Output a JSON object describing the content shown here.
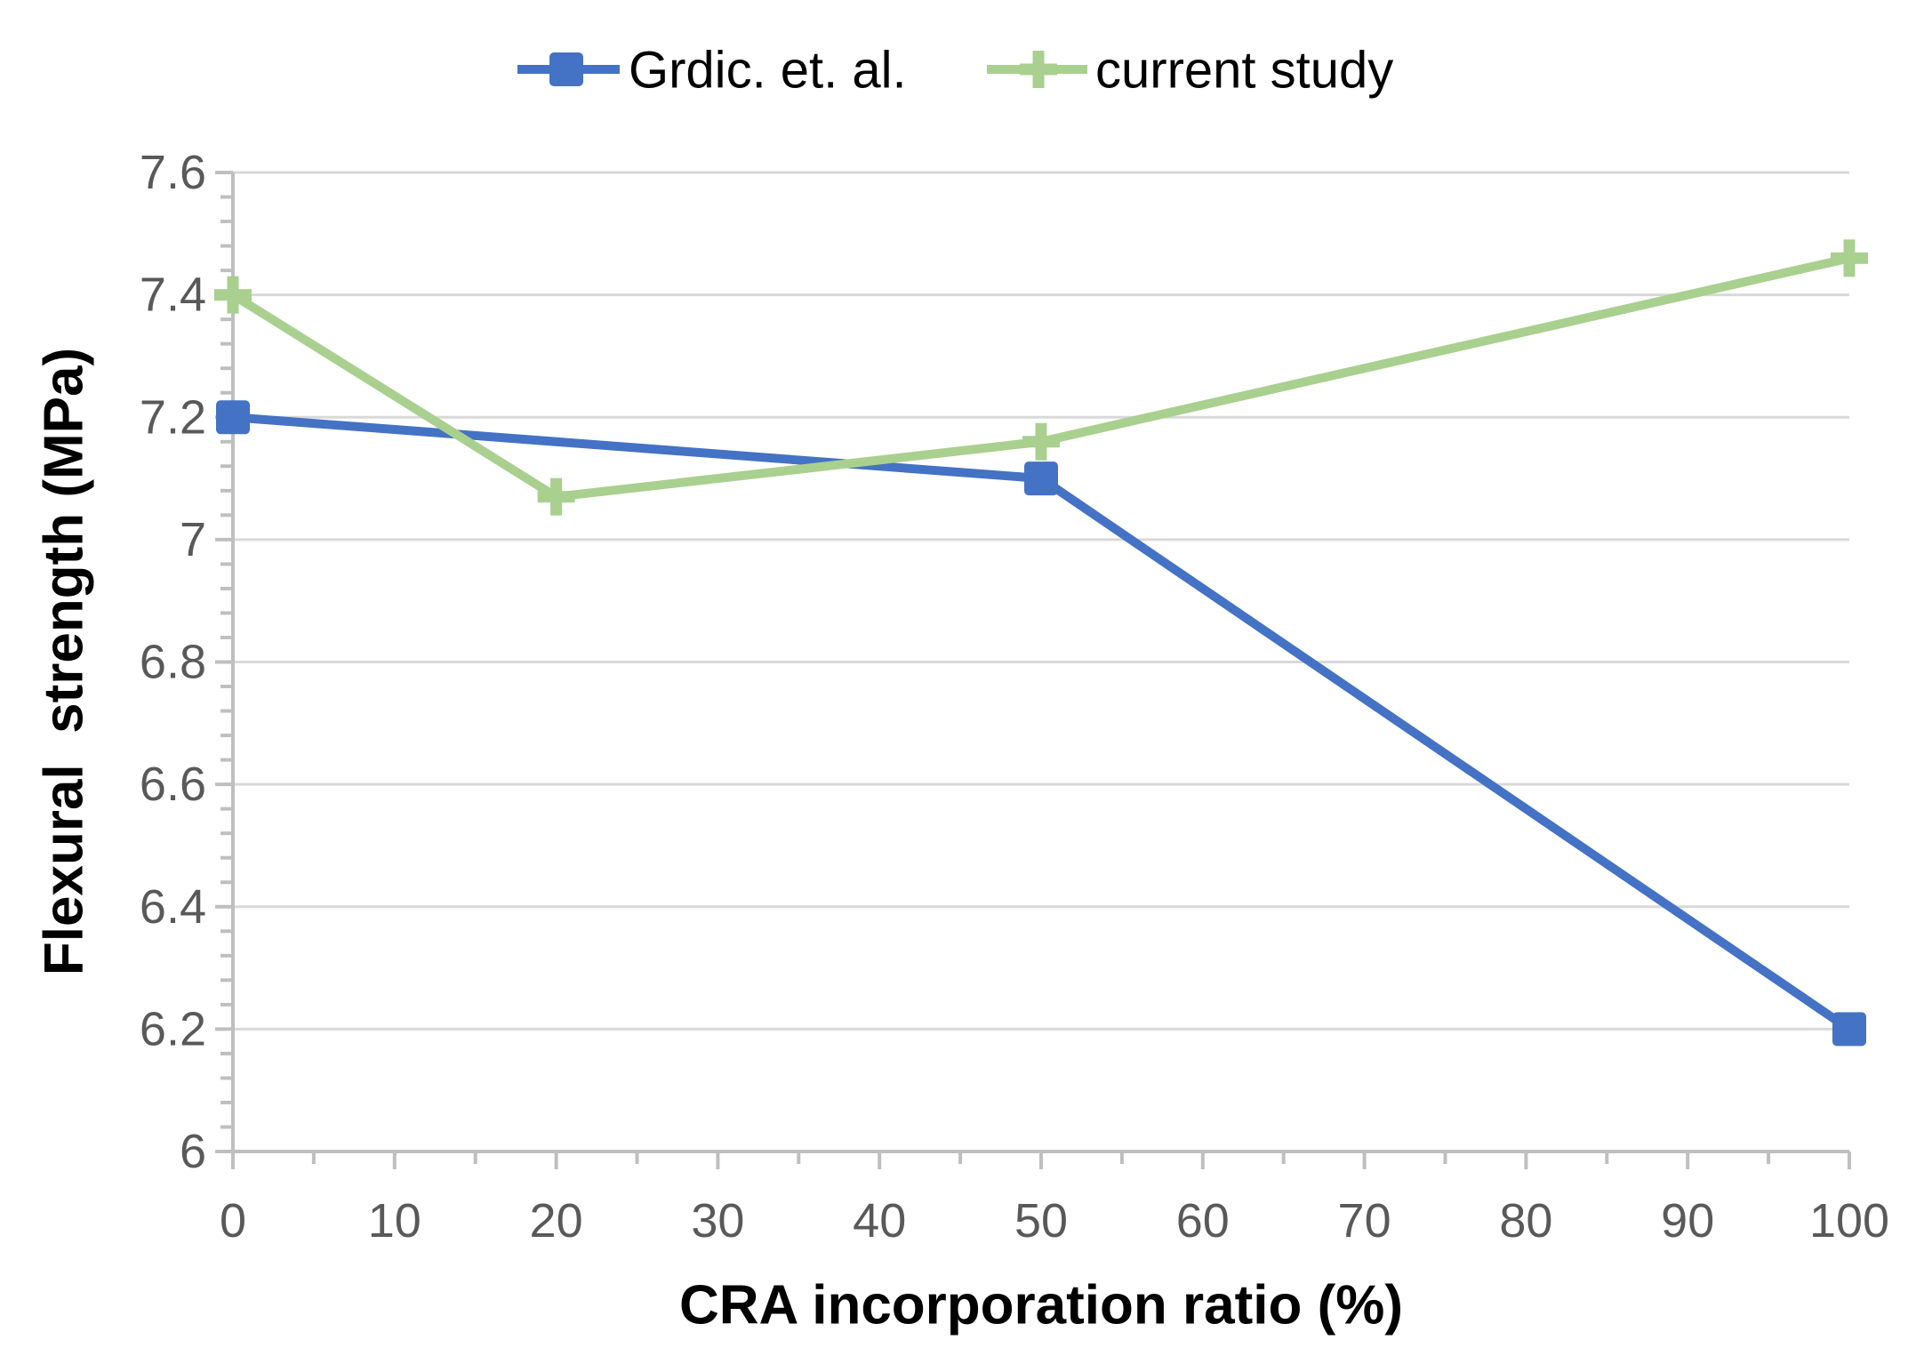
{
  "chart_data": {
    "type": "line",
    "title": "",
    "xlabel": "CRA incorporation ratio (%)",
    "ylabel": "Flexural  strength (MPa)",
    "xlim": [
      0,
      100
    ],
    "ylim": [
      6,
      7.6
    ],
    "grid": "horizontal",
    "legend_position": "top",
    "x_ticks": {
      "values": [
        0,
        10,
        20,
        30,
        40,
        50,
        60,
        70,
        80,
        90,
        100
      ],
      "labels": [
        "0",
        "10",
        "20",
        "30",
        "40",
        "50",
        "60",
        "70",
        "80",
        "90",
        "100"
      ],
      "major_step": 10,
      "minor_step": 5
    },
    "y_ticks": {
      "values": [
        6,
        6.2,
        6.4,
        6.6,
        6.8,
        7,
        7.2,
        7.4,
        7.6
      ],
      "labels": [
        "6",
        "6.2",
        "6.4",
        "6.6",
        "6.8",
        "7",
        "7.2",
        "7.4",
        "7.6"
      ],
      "major_step": 0.2,
      "minor_step": 0.04
    },
    "series": [
      {
        "name": "Grdic. et. al.",
        "color": "#4472C4",
        "marker": "square",
        "x": [
          0,
          50,
          100
        ],
        "y": [
          7.2,
          7.1,
          6.2
        ]
      },
      {
        "name": "current study",
        "color": "#A9D08E",
        "marker": "plus",
        "x": [
          0,
          20,
          50,
          100
        ],
        "y": [
          7.4,
          7.07,
          7.16,
          7.46
        ]
      }
    ],
    "colors": {
      "grid": "#D9D9D9",
      "axis": "#BFBFBF",
      "tick_label": "#595959",
      "text": "#000000",
      "background": "#FFFFFF"
    }
  }
}
